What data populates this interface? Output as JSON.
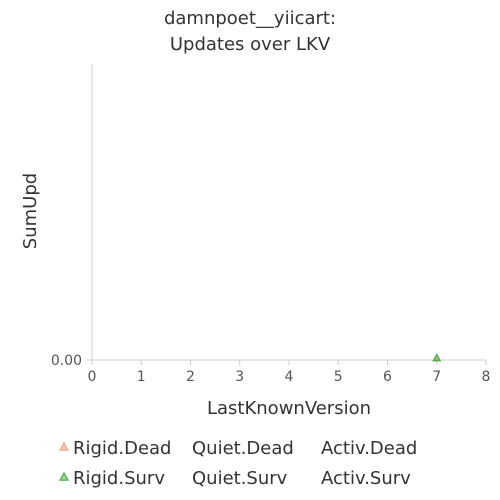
{
  "chart_data": {
    "type": "scatter",
    "title_lines": [
      "damnpoet__yiicart:",
      "Updates over LKV"
    ],
    "xlabel": "LastKnownVersion",
    "ylabel": "SumUpd",
    "xlim": [
      0,
      8
    ],
    "x_ticks": [
      0,
      1,
      2,
      3,
      4,
      5,
      6,
      7,
      8
    ],
    "y_ticks": [
      0
    ],
    "y_tick_labels": [
      "0.00"
    ],
    "grid": false,
    "legend_position": "bottom",
    "series": [
      {
        "name": "Rigid.Dead",
        "marker": "triangle",
        "color": "#f4a582",
        "points": [
          {
            "x": 7,
            "y": 0
          }
        ]
      },
      {
        "name": "Quiet.Dead",
        "marker": "none",
        "color": "#333333",
        "points": []
      },
      {
        "name": "Activ.Dead",
        "marker": "none",
        "color": "#333333",
        "points": []
      },
      {
        "name": "Rigid.Surv",
        "marker": "triangle",
        "color": "#4daf4a",
        "points": [
          {
            "x": 7,
            "y": 0
          }
        ]
      },
      {
        "name": "Quiet.Surv",
        "marker": "none",
        "color": "#333333",
        "points": []
      },
      {
        "name": "Activ.Surv",
        "marker": "none",
        "color": "#333333",
        "points": []
      }
    ]
  }
}
